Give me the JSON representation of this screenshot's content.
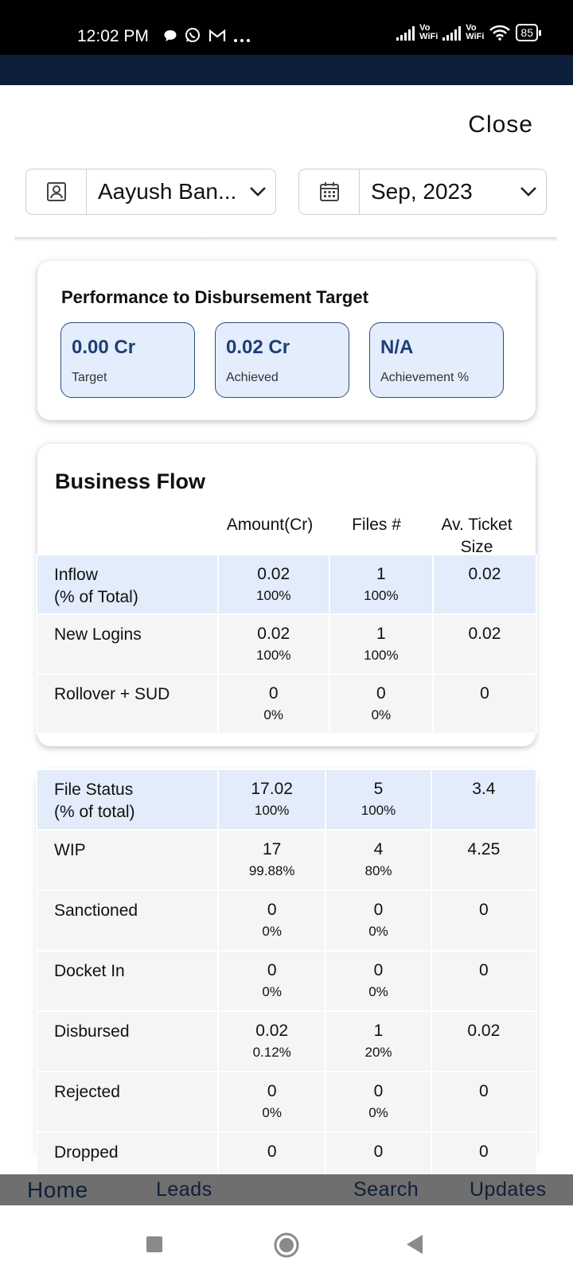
{
  "status_bar": {
    "time": "12:02 PM",
    "left_icons": [
      "chat-bubble-icon",
      "whatsapp-icon",
      "gmail-icon",
      "more-dots-icon"
    ],
    "vowifi_label_1": "Vo\nWiFi",
    "vowifi_label_2": "Vo\nWiFi",
    "battery": "85"
  },
  "header": {
    "close_label": "Close"
  },
  "filters": {
    "user_value": "Aayush Ban...",
    "period_value": "Sep, 2023"
  },
  "performance": {
    "title": "Performance to Disbursement Target",
    "kpis": [
      {
        "value": "0.00 Cr",
        "label": "Target"
      },
      {
        "value": "0.02 Cr",
        "label": "Achieved"
      },
      {
        "value": "N/A",
        "label": "Achievement %"
      }
    ]
  },
  "business_flow": {
    "title": "Business Flow",
    "columns": [
      "Amount(Cr)",
      "Files #",
      "Av. Ticket\nSize"
    ],
    "rows": [
      {
        "label": "Inflow\n(% of Total)",
        "amount": "0.02",
        "amount_pct": "100%",
        "files": "1",
        "files_pct": "100%",
        "ticket": "0.02"
      },
      {
        "label": "New Logins",
        "amount": "0.02",
        "amount_pct": "100%",
        "files": "1",
        "files_pct": "100%",
        "ticket": "0.02"
      },
      {
        "label": "Rollover + SUD",
        "amount": "0",
        "amount_pct": "0%",
        "files": "0",
        "files_pct": "0%",
        "ticket": "0"
      }
    ]
  },
  "file_status": {
    "rows": [
      {
        "label": "File Status\n(% of total)",
        "amount": "17.02",
        "amount_pct": "100%",
        "files": "5",
        "files_pct": "100%",
        "ticket": "3.4"
      },
      {
        "label": "WIP",
        "amount": "17",
        "amount_pct": "99.88%",
        "files": "4",
        "files_pct": "80%",
        "ticket": "4.25"
      },
      {
        "label": "Sanctioned",
        "amount": "0",
        "amount_pct": "0%",
        "files": "0",
        "files_pct": "0%",
        "ticket": "0"
      },
      {
        "label": "Docket In",
        "amount": "0",
        "amount_pct": "0%",
        "files": "0",
        "files_pct": "0%",
        "ticket": "0"
      },
      {
        "label": "Disbursed",
        "amount": "0.02",
        "amount_pct": "0.12%",
        "files": "1",
        "files_pct": "20%",
        "ticket": "0.02"
      },
      {
        "label": "Rejected",
        "amount": "0",
        "amount_pct": "0%",
        "files": "0",
        "files_pct": "0%",
        "ticket": "0"
      },
      {
        "label": "Dropped",
        "amount": "0",
        "amount_pct": "",
        "files": "0",
        "files_pct": "",
        "ticket": "0"
      }
    ]
  },
  "tabs": [
    {
      "label": "Home",
      "active": true
    },
    {
      "label": "Leads",
      "active": false
    },
    {
      "label": "Search",
      "active": false
    },
    {
      "label": "Updates",
      "active": false
    }
  ],
  "colors": {
    "navy": "#0d1e3b",
    "kpi_bg": "#e3edfb",
    "kpi_border": "#2b4d80",
    "highlight_row": "#e2ecfa",
    "row_bg": "#f5f5f5",
    "tabbar": "#6f6f6f"
  }
}
